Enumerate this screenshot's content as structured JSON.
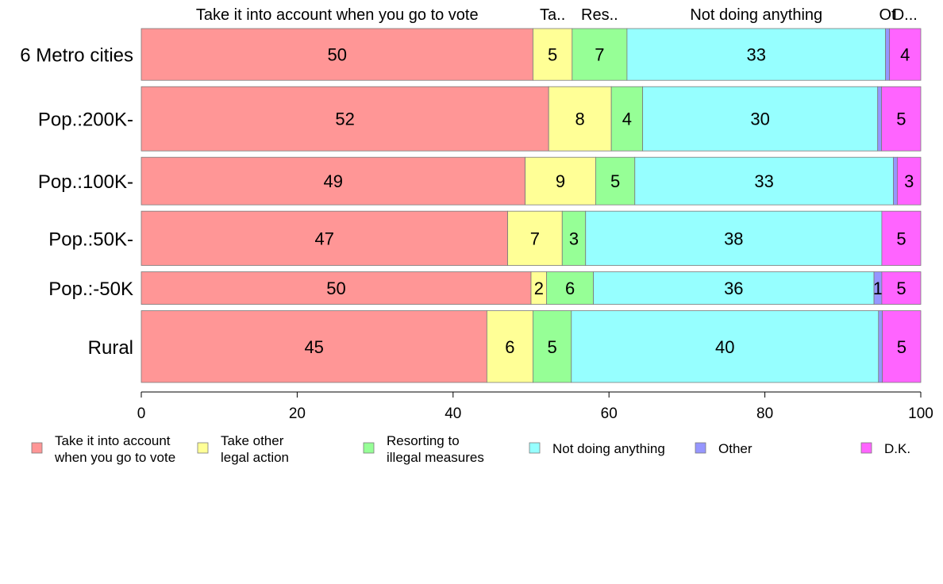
{
  "chart_data": {
    "type": "bar",
    "orientation": "horizontal",
    "stacked": true,
    "percent": true,
    "categories": [
      "6 Metro cities",
      "Pop.:200K-",
      "Pop.:100K-",
      "Pop.:50K-",
      "Pop.:-50K",
      "Rural"
    ],
    "series": [
      {
        "name": "Take it into account when you go to vote",
        "legend_label": [
          "Take it into account",
          "when you go to vote"
        ],
        "top_label": "Take it into account when you go to vote",
        "color": "#FF9696",
        "values": [
          50,
          52,
          49,
          47,
          50,
          45
        ],
        "labels": [
          "50",
          "52",
          "49",
          "47",
          "50",
          "45"
        ]
      },
      {
        "name": "Take other legal action",
        "legend_label": [
          "Take other",
          "legal action"
        ],
        "top_label": "Ta..",
        "color": "#FFFF96",
        "values": [
          5,
          8,
          9,
          7,
          2,
          6
        ],
        "labels": [
          "5",
          "8",
          "9",
          "7",
          "2",
          "6"
        ]
      },
      {
        "name": "Resorting to illegal measures",
        "legend_label": [
          "Resorting to",
          "illegal measures"
        ],
        "top_label": "Res..",
        "color": "#96FF96",
        "values": [
          7,
          4,
          5,
          3,
          6,
          5
        ],
        "labels": [
          "7",
          "4",
          "5",
          "3",
          "6",
          "5"
        ]
      },
      {
        "name": "Not doing anything",
        "legend_label": [
          "Not doing anything"
        ],
        "top_label": "Not doing anything",
        "color": "#96FFFF",
        "values": [
          33,
          30,
          33,
          38,
          36,
          40
        ],
        "labels": [
          "33",
          "30",
          "33",
          "38",
          "36",
          "40"
        ]
      },
      {
        "name": "Other",
        "legend_label": [
          "Other"
        ],
        "top_label": "Ot",
        "color": "#9696FF",
        "values": [
          0.5,
          0.5,
          0.5,
          0,
          1,
          0.5
        ],
        "labels": [
          "",
          "",
          "",
          "",
          "1",
          ""
        ]
      },
      {
        "name": "D.K.",
        "legend_label": [
          "D.K."
        ],
        "top_label": "D...",
        "color": "#FF64FF",
        "values": [
          4,
          5,
          3,
          5,
          5,
          5
        ],
        "labels": [
          "4",
          "5",
          "3",
          "5",
          "5",
          "5"
        ]
      }
    ],
    "row_weights": [
      0.62,
      0.77,
      0.57,
      0.65,
      0.39,
      0.86
    ],
    "xlim": [
      0,
      100
    ],
    "xticks": [
      0,
      20,
      40,
      60,
      80,
      100
    ],
    "xlabel": "",
    "ylabel": "",
    "grid": false,
    "legend_position": "bottom"
  }
}
